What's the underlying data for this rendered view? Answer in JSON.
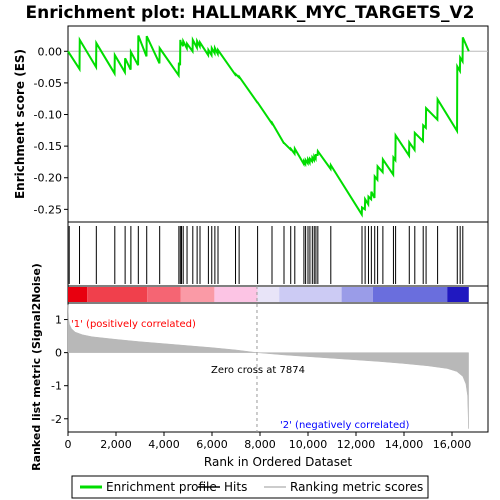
{
  "chart_data": {
    "type": "line",
    "title": "Enrichment plot: HALLMARK_MYC_TARGETS_V2",
    "ylabel_top": "Enrichment score (ES)",
    "ylabel_bottom": "Ranked list metric (Signal2Noise)",
    "xlabel": "Rank in Ordered Dataset",
    "xlim": [
      0,
      17500
    ],
    "es_ylim": [
      -0.27,
      0.04
    ],
    "metric_ylim": [
      -2.4,
      1.5
    ],
    "x_ticks": [
      0,
      2000,
      4000,
      6000,
      8000,
      10000,
      12000,
      14000,
      16000
    ],
    "x_tick_labels": [
      "0",
      "2,000",
      "4,000",
      "6,000",
      "8,000",
      "10,000",
      "12,000",
      "14,000",
      "16,000"
    ],
    "es_ticks": [
      0.0,
      -0.05,
      -0.1,
      -0.15,
      -0.2,
      -0.25
    ],
    "es_tick_labels": [
      "0.00",
      "-0.05",
      "-0.10",
      "-0.15",
      "-0.20",
      "-0.25"
    ],
    "metric_ticks": [
      1,
      0,
      -1,
      -2
    ],
    "metric_tick_labels": [
      "1",
      "0",
      "-1",
      "-2"
    ],
    "n_genes": 16700,
    "zero_cross": 7874,
    "zero_cross_label": "Zero cross at 7874",
    "pos_label": "'1' (positively correlated)",
    "neg_label": "'2' (negatively correlated)",
    "hits": [
      50,
      480,
      1180,
      1950,
      2380,
      2620,
      2930,
      3280,
      3820,
      4620,
      4680,
      4730,
      4800,
      4960,
      5200,
      5380,
      5500,
      5850,
      5990,
      6120,
      6250,
      6980,
      7130,
      7900,
      8500,
      9000,
      9280,
      9450,
      9830,
      9900,
      10000,
      10080,
      10180,
      10260,
      10330,
      10410,
      10950,
      12250,
      12380,
      12520,
      12640,
      12780,
      12900,
      13120,
      13560,
      13650,
      14220,
      14450,
      14800,
      14920,
      15400,
      16220,
      16340,
      16450
    ],
    "es_series": [
      [
        0,
        0.0
      ],
      [
        480,
        -0.028
      ],
      [
        490,
        0.018
      ],
      [
        1170,
        -0.025
      ],
      [
        1180,
        0.013
      ],
      [
        1940,
        -0.035
      ],
      [
        1950,
        -0.006
      ],
      [
        2370,
        -0.033
      ],
      [
        2380,
        -0.011
      ],
      [
        2610,
        -0.029
      ],
      [
        2620,
        -0.001
      ],
      [
        2920,
        -0.022
      ],
      [
        2930,
        0.025
      ],
      [
        3270,
        -0.008
      ],
      [
        3280,
        0.024
      ],
      [
        3810,
        -0.019
      ],
      [
        3820,
        0.005
      ],
      [
        4610,
        -0.038
      ],
      [
        4620,
        -0.018
      ],
      [
        4670,
        -0.022
      ],
      [
        4680,
        0.018
      ],
      [
        4720,
        0.01
      ],
      [
        4730,
        0.014
      ],
      [
        4790,
        0.008
      ],
      [
        4800,
        0.016
      ],
      [
        4950,
        0.005
      ],
      [
        4960,
        0.012
      ],
      [
        5190,
        0.0
      ],
      [
        5200,
        0.018
      ],
      [
        5370,
        0.006
      ],
      [
        5380,
        0.016
      ],
      [
        5490,
        0.008
      ],
      [
        5500,
        0.014
      ],
      [
        5840,
        -0.006
      ],
      [
        5850,
        0.002
      ],
      [
        5980,
        -0.006
      ],
      [
        5990,
        0.005
      ],
      [
        6110,
        -0.003
      ],
      [
        6120,
        0.005
      ],
      [
        6240,
        -0.004
      ],
      [
        6250,
        0.002
      ],
      [
        6970,
        -0.037
      ],
      [
        6980,
        -0.036
      ],
      [
        7120,
        -0.041
      ],
      [
        7130,
        -0.04
      ],
      [
        7890,
        -0.081
      ],
      [
        7900,
        -0.081
      ],
      [
        8490,
        -0.114
      ],
      [
        8500,
        -0.113
      ],
      [
        8990,
        -0.145
      ],
      [
        9000,
        -0.145
      ],
      [
        9270,
        -0.155
      ],
      [
        9280,
        -0.154
      ],
      [
        9440,
        -0.162
      ],
      [
        9450,
        -0.154
      ],
      [
        9820,
        -0.178
      ],
      [
        9830,
        -0.174
      ],
      [
        9890,
        -0.178
      ],
      [
        9900,
        -0.172
      ],
      [
        9990,
        -0.177
      ],
      [
        10000,
        -0.171
      ],
      [
        10070,
        -0.176
      ],
      [
        10080,
        -0.17
      ],
      [
        10170,
        -0.174
      ],
      [
        10180,
        -0.168
      ],
      [
        10250,
        -0.172
      ],
      [
        10260,
        -0.166
      ],
      [
        10320,
        -0.17
      ],
      [
        10330,
        -0.164
      ],
      [
        10400,
        -0.164
      ],
      [
        10410,
        -0.158
      ],
      [
        10940,
        -0.186
      ],
      [
        10950,
        -0.18
      ],
      [
        12240,
        -0.258
      ],
      [
        12250,
        -0.247
      ],
      [
        12370,
        -0.25
      ],
      [
        12380,
        -0.234
      ],
      [
        12510,
        -0.242
      ],
      [
        12520,
        -0.23
      ],
      [
        12630,
        -0.234
      ],
      [
        12640,
        -0.222
      ],
      [
        12770,
        -0.232
      ],
      [
        12780,
        -0.198
      ],
      [
        12890,
        -0.203
      ],
      [
        12900,
        -0.182
      ],
      [
        13110,
        -0.191
      ],
      [
        13120,
        -0.171
      ],
      [
        13550,
        -0.195
      ],
      [
        13560,
        -0.168
      ],
      [
        13640,
        -0.172
      ],
      [
        13650,
        -0.133
      ],
      [
        14210,
        -0.165
      ],
      [
        14220,
        -0.144
      ],
      [
        14440,
        -0.156
      ],
      [
        14450,
        -0.129
      ],
      [
        14790,
        -0.142
      ],
      [
        14800,
        -0.117
      ],
      [
        14910,
        -0.121
      ],
      [
        14920,
        -0.09
      ],
      [
        15390,
        -0.108
      ],
      [
        15400,
        -0.076
      ],
      [
        16210,
        -0.126
      ],
      [
        16220,
        -0.024
      ],
      [
        16330,
        -0.031
      ],
      [
        16340,
        -0.01
      ],
      [
        16440,
        -0.016
      ],
      [
        16450,
        0.022
      ],
      [
        16700,
        0.0
      ]
    ],
    "metric_series": [
      [
        0,
        1.45
      ],
      [
        20,
        1.05
      ],
      [
        60,
        0.85
      ],
      [
        150,
        0.72
      ],
      [
        300,
        0.62
      ],
      [
        600,
        0.54
      ],
      [
        1000,
        0.48
      ],
      [
        2000,
        0.4
      ],
      [
        3000,
        0.33
      ],
      [
        4000,
        0.27
      ],
      [
        5000,
        0.21
      ],
      [
        6000,
        0.15
      ],
      [
        7000,
        0.08
      ],
      [
        7874,
        0.0
      ],
      [
        9000,
        -0.07
      ],
      [
        10000,
        -0.12
      ],
      [
        11000,
        -0.17
      ],
      [
        12000,
        -0.22
      ],
      [
        13000,
        -0.27
      ],
      [
        14000,
        -0.33
      ],
      [
        15000,
        -0.4
      ],
      [
        15800,
        -0.48
      ],
      [
        16200,
        -0.57
      ],
      [
        16450,
        -0.72
      ],
      [
        16580,
        -0.95
      ],
      [
        16650,
        -1.3
      ],
      [
        16690,
        -2.3
      ]
    ],
    "heatmap_bands": [
      [
        0,
        800,
        "#e8000f"
      ],
      [
        800,
        3300,
        "#f0404c"
      ],
      [
        3300,
        4700,
        "#f56573"
      ],
      [
        4700,
        6100,
        "#fa9aa6"
      ],
      [
        6100,
        7900,
        "#fcc4e4"
      ],
      [
        7900,
        8800,
        "#e8e4f8"
      ],
      [
        8800,
        11400,
        "#cccbf4"
      ],
      [
        11400,
        12700,
        "#9a9ce8"
      ],
      [
        12700,
        15800,
        "#6a6edd"
      ],
      [
        15800,
        16700,
        "#2018c0"
      ]
    ],
    "colors": {
      "es_line": "#00dd00",
      "hits": "#000000",
      "metric_fill": "#b8b8b8",
      "pos_label": "#ff0000",
      "neg_label": "#0000ff",
      "zero_cross_line": "#999999"
    },
    "legend": {
      "position": "bottom",
      "items": [
        {
          "label": "Enrichment profile",
          "color": "#00dd00",
          "kind": "line"
        },
        {
          "label": "Hits",
          "color": "#000000",
          "kind": "line"
        },
        {
          "label": "Ranking metric scores",
          "color": "#bbbbbb",
          "kind": "line"
        }
      ]
    }
  }
}
